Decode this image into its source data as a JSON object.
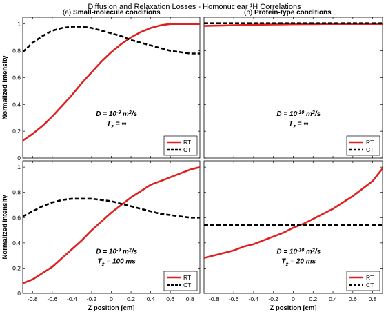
{
  "figure": {
    "title": "Diffusion and Relaxation Losses - Homonuclear ¹H Correlations"
  },
  "colors": {
    "rt": "#e02020",
    "ct": "#000000",
    "axes": "#000000"
  },
  "chart_data": [
    {
      "type": "line",
      "panel_label": "(a) Small-molecule conditions",
      "ylabel": "Normalized Intensity",
      "xlabel": "",
      "xlim": [
        -0.9,
        0.9
      ],
      "ylim": [
        0,
        1.05
      ],
      "xticks": [
        "-0.8",
        "-0.6",
        "-0.4",
        "-0.2",
        "0",
        "0.2",
        "0.4",
        "0.6",
        "0.8"
      ],
      "yticks": [
        "0",
        "0.2",
        "0.4",
        "0.6",
        "0.8",
        "1"
      ],
      "annotation": [
        "D = 10⁻⁹ m²/s",
        "T₂ = ∞"
      ],
      "legend": "bottom-right",
      "x": [
        -0.9,
        -0.8,
        -0.7,
        -0.6,
        -0.5,
        -0.4,
        -0.3,
        -0.2,
        -0.1,
        0.0,
        0.1,
        0.2,
        0.3,
        0.4,
        0.5,
        0.6,
        0.7,
        0.8,
        0.9
      ],
      "series": [
        {
          "name": "RT",
          "style": "solid",
          "values": [
            0.13,
            0.18,
            0.24,
            0.31,
            0.39,
            0.47,
            0.56,
            0.64,
            0.72,
            0.79,
            0.85,
            0.9,
            0.94,
            0.97,
            0.99,
            1.0,
            1.0,
            1.0,
            1.0
          ]
        },
        {
          "name": "CT",
          "style": "dashed",
          "values": [
            0.79,
            0.86,
            0.91,
            0.95,
            0.97,
            0.98,
            0.98,
            0.97,
            0.95,
            0.93,
            0.91,
            0.88,
            0.86,
            0.84,
            0.82,
            0.8,
            0.79,
            0.78,
            0.78
          ]
        }
      ]
    },
    {
      "type": "line",
      "panel_label": "(b) Protein-type conditions",
      "ylabel": "",
      "xlabel": "",
      "xlim": [
        -0.9,
        0.9
      ],
      "ylim": [
        0,
        1.05
      ],
      "xticks": [
        "-0.8",
        "-0.6",
        "-0.4",
        "-0.2",
        "0",
        "0.2",
        "0.4",
        "0.6",
        "0.8"
      ],
      "yticks": [],
      "annotation": [
        "D = 10⁻¹⁰ m²/s",
        "T₂ = ∞"
      ],
      "legend": "bottom-right",
      "x": [
        -0.9,
        -0.8,
        -0.7,
        -0.6,
        -0.5,
        -0.4,
        -0.3,
        -0.2,
        -0.1,
        0.0,
        0.1,
        0.2,
        0.3,
        0.4,
        0.5,
        0.6,
        0.7,
        0.8,
        0.9
      ],
      "series": [
        {
          "name": "RT",
          "style": "solid",
          "values": [
            0.985,
            0.987,
            0.989,
            0.991,
            0.992,
            0.994,
            0.995,
            0.996,
            0.997,
            0.998,
            0.999,
            0.999,
            1.0,
            1.0,
            1.0,
            1.0,
            1.0,
            1.0,
            1.0
          ]
        },
        {
          "name": "CT",
          "style": "dashed",
          "values": [
            1.005,
            1.005,
            1.005,
            1.005,
            1.005,
            1.005,
            1.005,
            1.005,
            1.005,
            1.005,
            1.005,
            1.005,
            1.005,
            1.005,
            1.005,
            1.005,
            1.005,
            1.005,
            1.005
          ]
        }
      ]
    },
    {
      "type": "line",
      "panel_label": "",
      "ylabel": "Normalized Intensity",
      "xlabel": "Z position [cm]",
      "xlim": [
        -0.9,
        0.9
      ],
      "ylim": [
        0,
        1.05
      ],
      "xticks": [
        "-0.8",
        "-0.6",
        "-0.4",
        "-0.2",
        "0",
        "0.2",
        "0.4",
        "0.6",
        "0.8"
      ],
      "yticks": [
        "0",
        "0.2",
        "0.4",
        "0.6",
        "0.8",
        "1"
      ],
      "annotation": [
        "D = 10⁻⁹ m²/s",
        "T₂ = 100 ms"
      ],
      "legend": "bottom-right",
      "x": [
        -0.9,
        -0.8,
        -0.7,
        -0.6,
        -0.5,
        -0.4,
        -0.3,
        -0.2,
        -0.1,
        0.0,
        0.1,
        0.2,
        0.3,
        0.4,
        0.5,
        0.6,
        0.7,
        0.8,
        0.9
      ],
      "series": [
        {
          "name": "RT",
          "style": "solid",
          "values": [
            0.08,
            0.11,
            0.16,
            0.21,
            0.28,
            0.35,
            0.42,
            0.5,
            0.57,
            0.64,
            0.7,
            0.76,
            0.81,
            0.86,
            0.89,
            0.92,
            0.95,
            0.98,
            1.0
          ]
        },
        {
          "name": "CT",
          "style": "dashed",
          "values": [
            0.61,
            0.65,
            0.69,
            0.72,
            0.74,
            0.75,
            0.75,
            0.75,
            0.74,
            0.73,
            0.71,
            0.69,
            0.67,
            0.65,
            0.63,
            0.62,
            0.61,
            0.6,
            0.6
          ]
        }
      ]
    },
    {
      "type": "line",
      "panel_label": "",
      "ylabel": "",
      "xlabel": "Z position [cm]",
      "xlim": [
        -0.9,
        0.9
      ],
      "ylim": [
        0,
        1.05
      ],
      "xticks": [
        "-0.8",
        "-0.6",
        "-0.4",
        "-0.2",
        "0",
        "0.2",
        "0.4",
        "0.6",
        "0.8"
      ],
      "yticks": [],
      "annotation": [
        "D = 10⁻¹⁰ m²/s",
        "T₂ = 20 ms"
      ],
      "legend": "bottom-right",
      "x": [
        -0.9,
        -0.8,
        -0.7,
        -0.6,
        -0.5,
        -0.4,
        -0.3,
        -0.2,
        -0.1,
        0.0,
        0.1,
        0.2,
        0.3,
        0.4,
        0.5,
        0.6,
        0.7,
        0.8,
        0.9
      ],
      "series": [
        {
          "name": "RT",
          "style": "solid",
          "values": [
            0.28,
            0.3,
            0.32,
            0.34,
            0.37,
            0.39,
            0.42,
            0.45,
            0.48,
            0.52,
            0.55,
            0.59,
            0.63,
            0.67,
            0.72,
            0.77,
            0.83,
            0.89,
            0.99
          ]
        },
        {
          "name": "CT",
          "style": "dashed",
          "values": [
            0.54,
            0.54,
            0.54,
            0.54,
            0.54,
            0.54,
            0.54,
            0.54,
            0.54,
            0.54,
            0.54,
            0.54,
            0.54,
            0.54,
            0.54,
            0.54,
            0.54,
            0.54,
            0.54
          ]
        }
      ]
    }
  ]
}
